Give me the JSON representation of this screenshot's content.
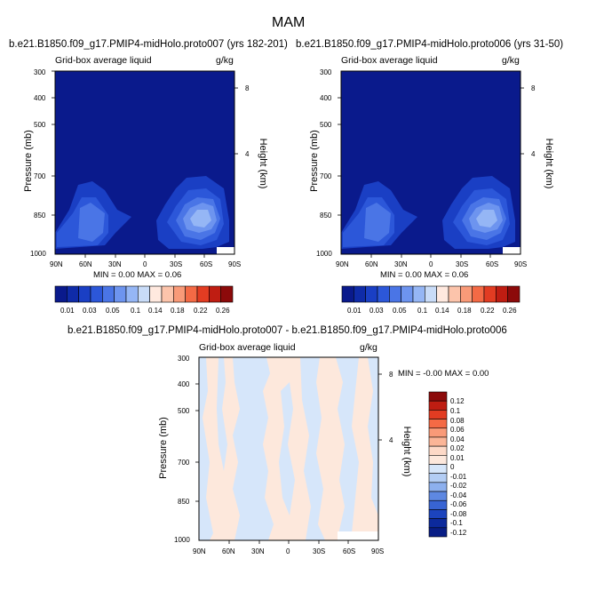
{
  "figure_title": "MAM",
  "chart_data": [
    {
      "type": "heatmap",
      "title": "b.e21.B1850.f09_g17.PMIP4-midHolo.proto007 (yrs 182-201)",
      "subtitle_left": "Grid-box average liquid",
      "subtitle_right": "g/kg",
      "xlabel": "",
      "ylabel": "Pressure (mb)",
      "ylabel_right": "Height (km)",
      "x_ticks": [
        "90N",
        "60N",
        "30N",
        "0",
        "30S",
        "60S",
        "90S"
      ],
      "y_ticks": [
        "300",
        "400",
        "500",
        "700",
        "850",
        "1000"
      ],
      "y_ticks_right": [
        "8",
        "4"
      ],
      "stats": "MIN =  0.00  MAX =  0.06",
      "colorbar_labels": [
        "0.01",
        "0.03",
        "0.05",
        "0.1",
        "0.14",
        "0.18",
        "0.22",
        "0.26"
      ]
    },
    {
      "type": "heatmap",
      "title": "b.e21.B1850.f09_g17.PMIP4-midHolo.proto006 (yrs 31-50)",
      "subtitle_left": "Grid-box average liquid",
      "subtitle_right": "g/kg",
      "xlabel": "",
      "ylabel": "Pressure (mb)",
      "ylabel_right": "Height (km)",
      "x_ticks": [
        "90N",
        "60N",
        "30N",
        "0",
        "30S",
        "60S",
        "90S"
      ],
      "y_ticks": [
        "300",
        "400",
        "500",
        "700",
        "850",
        "1000"
      ],
      "y_ticks_right": [
        "8",
        "4"
      ],
      "stats": "MIN =  0.00  MAX =  0.06",
      "colorbar_labels": [
        "0.01",
        "0.03",
        "0.05",
        "0.1",
        "0.14",
        "0.18",
        "0.22",
        "0.26"
      ]
    },
    {
      "type": "heatmap",
      "title": "b.e21.B1850.f09_g17.PMIP4-midHolo.proto007 - b.e21.B1850.f09_g17.PMIP4-midHolo.proto006",
      "subtitle_left": "Grid-box average liquid",
      "subtitle_right": "g/kg",
      "xlabel": "",
      "ylabel": "Pressure (mb)",
      "ylabel_right": "Height (km)",
      "x_ticks": [
        "90N",
        "60N",
        "30N",
        "0",
        "30S",
        "60S",
        "90S"
      ],
      "y_ticks": [
        "300",
        "400",
        "500",
        "700",
        "850",
        "1000"
      ],
      "y_ticks_right": [
        "8",
        "4"
      ],
      "stats": "MIN =  -0.00  MAX =   0.00",
      "colorbar_labels": [
        "0.12",
        "0.1",
        "0.08",
        "0.06",
        "0.04",
        "0.02",
        "0.01",
        "0",
        "-0.01",
        "-0.02",
        "-0.04",
        "-0.06",
        "-0.08",
        "-0.1",
        "-0.12"
      ]
    }
  ],
  "colors": {
    "abs_palette": [
      "#0a1a8c",
      "#0f2ba8",
      "#1a3fc4",
      "#2c57d9",
      "#4a75e6",
      "#6d94ef",
      "#95b6f5",
      "#c9dcf8",
      "#ffe9df",
      "#fcc4ab",
      "#f99a78",
      "#f46a45",
      "#e23c22",
      "#bf1d12",
      "#8c0a0a"
    ],
    "diff_palette": [
      "#8c0a0a",
      "#bf1d12",
      "#e23c22",
      "#f46a45",
      "#f99a78",
      "#fbb597",
      "#fdd9c7",
      "#fde8dc",
      "#d6e6fa",
      "#b3cdf4",
      "#8db0ee",
      "#5e88e2",
      "#3864d3",
      "#1c44bd",
      "#0c2a9c",
      "#081d85"
    ]
  }
}
